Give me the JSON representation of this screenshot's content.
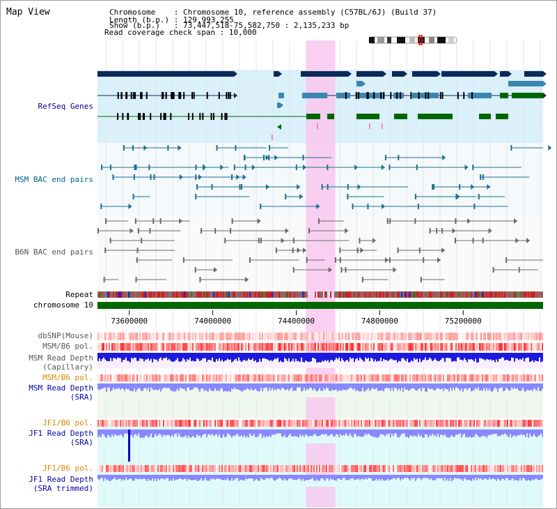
{
  "view_title": "Map View",
  "info": {
    "line1": "Chromosome    : Chromosome 10, reference assembly (C57BL/6J) (Build 37)",
    "line2": "Length (b.p.) : 129,993,255",
    "line3": "Show (b.p.)   : 73,447,518-75,582,750 : 2,135,233 bp",
    "line4": "Read coverage check span : 10,000"
  },
  "tracks": {
    "refseq": "RefSeq Genes",
    "msm_bac": "MSM BAC end pairs",
    "b6n_bac": "B6N BAC end pairs",
    "repeat": "Repeat",
    "chromosome": "chromosome 10",
    "dbsnp": "dbSNP(Mouse)",
    "msm_b6_pol": "MSM/B6 pol.",
    "msm_depth_cap_1": "MSM Read Depth",
    "msm_depth_cap_2": "(Capillary)",
    "msm_b6_pol_2": "MSM/B6 pol.",
    "msm_depth_sra_1": "MSM Read Depth",
    "msm_depth_sra_2": "(SRA)",
    "jf1_b6_pol": "JF1/B6 pol.",
    "jf1_depth_sra_1": "JF1 Read Depth",
    "jf1_depth_sra_2": "(SRA)",
    "jf1_b6_pol_2": "JF1/B6 pol.",
    "jf1_depth_trim_1": "JF1 Read Depth",
    "jf1_depth_trim_2": "(SRA trimmed)"
  },
  "ruler": {
    "range_bp": [
      73447518,
      75582750
    ],
    "ticks": [
      {
        "value": 73600000,
        "label": "73600000"
      },
      {
        "value": 74000000,
        "label": "74000000"
      },
      {
        "value": 74400000,
        "label": "74400000"
      },
      {
        "value": 74800000,
        "label": "74800000"
      },
      {
        "value": 75200000,
        "label": "75200000"
      }
    ]
  },
  "highlight_bp": [
    74447000,
    74587000
  ],
  "colors": {
    "refseq_label": "#000099",
    "msm_label": "#006688",
    "b6n_label": "#555555",
    "orange_label": "#dd8800",
    "blue_label": "#0000aa",
    "gene_dark": "#0b2a5a",
    "gene_mid": "#3a86b0",
    "gene_green": "#006600",
    "refseq_bg": "#daf0fa",
    "chrom_bar": "#006600",
    "highlight": "#f8c8ee"
  }
}
